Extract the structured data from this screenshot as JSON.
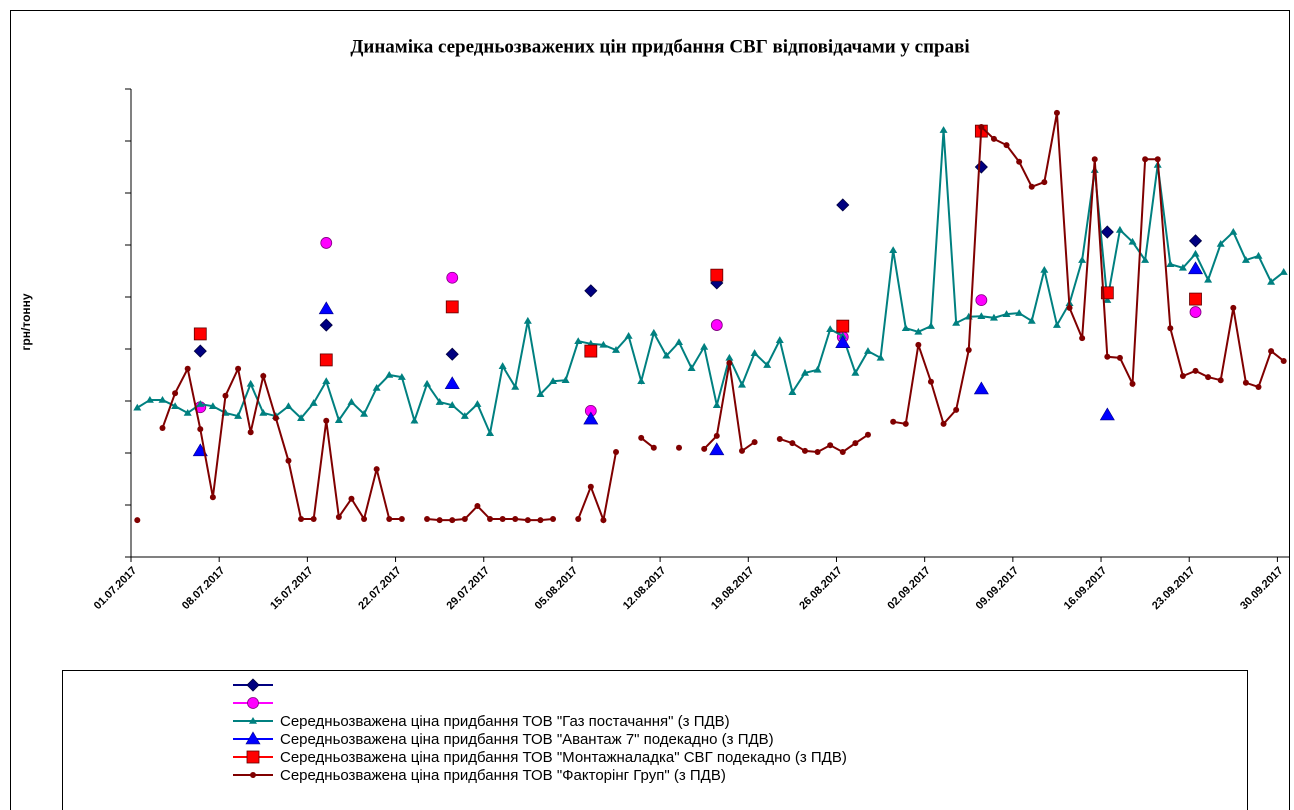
{
  "chart_data": {
    "type": "line",
    "title": "Динаміка середньозважених цін придбання СВГ відповідачами у справі",
    "y_label": "грн/тонну",
    "categories": [
      "01.07.2017",
      null,
      null,
      null,
      null,
      null,
      null,
      "08.07.2017",
      null,
      null,
      null,
      null,
      null,
      null,
      "15.07.2017",
      null,
      null,
      null,
      null,
      null,
      null,
      "22.07.2017",
      null,
      null,
      null,
      null,
      null,
      null,
      "29.07.2017",
      null,
      null,
      null,
      null,
      null,
      null,
      "05.08.2017",
      null,
      null,
      null,
      null,
      null,
      null,
      "12.08.2017",
      null,
      null,
      null,
      null,
      null,
      null,
      "19.08.2017",
      null,
      null,
      null,
      null,
      null,
      null,
      "26.08.2017",
      null,
      null,
      null,
      null,
      null,
      null,
      "02.09.2017",
      null,
      null,
      null,
      null,
      null,
      null,
      "09.09.2017",
      null,
      null,
      null,
      null,
      null,
      null,
      "16.09.2017",
      null,
      null,
      null,
      null,
      null,
      null,
      "23.09.2017",
      null,
      null,
      null,
      null,
      null,
      null,
      "30.09.2017"
    ],
    "ylim": [
      0,
      900
    ],
    "yticks": [
      0,
      100,
      200,
      300,
      400,
      500,
      600,
      700,
      800,
      900
    ],
    "grid": false,
    "series": [
      {
        "color": "#000080",
        "marker": "diamond",
        "line": false,
        "values": [
          null,
          null,
          null,
          null,
          null,
          396,
          null,
          null,
          null,
          null,
          null,
          null,
          null,
          null,
          null,
          446,
          null,
          null,
          null,
          null,
          null,
          null,
          null,
          null,
          null,
          390,
          null,
          null,
          null,
          null,
          null,
          null,
          null,
          null,
          null,
          null,
          512,
          null,
          null,
          null,
          null,
          null,
          null,
          null,
          null,
          null,
          527,
          null,
          null,
          null,
          null,
          null,
          null,
          null,
          null,
          null,
          677,
          null,
          null,
          null,
          null,
          null,
          null,
          null,
          null,
          null,
          null,
          750,
          null,
          null,
          null,
          null,
          null,
          null,
          null,
          null,
          null,
          625,
          null,
          null,
          null,
          null,
          null,
          null,
          608,
          null,
          null,
          null,
          null,
          null,
          null,
          null
        ]
      },
      {
        "color": "#ff00ff",
        "marker": "circle",
        "line": false,
        "values": [
          null,
          null,
          null,
          null,
          null,
          288,
          null,
          null,
          null,
          null,
          null,
          null,
          null,
          null,
          null,
          604,
          null,
          null,
          null,
          null,
          null,
          null,
          null,
          null,
          null,
          537,
          null,
          null,
          null,
          null,
          null,
          null,
          null,
          null,
          null,
          null,
          281,
          null,
          null,
          null,
          null,
          null,
          null,
          null,
          null,
          null,
          446,
          null,
          null,
          null,
          null,
          null,
          null,
          null,
          null,
          null,
          423,
          null,
          null,
          null,
          null,
          null,
          null,
          null,
          null,
          null,
          null,
          494,
          null,
          null,
          null,
          null,
          null,
          null,
          null,
          null,
          null,
          null,
          null,
          null,
          null,
          null,
          null,
          null,
          471,
          null,
          null,
          null,
          null,
          null,
          null,
          null
        ]
      },
      {
        "name": "Середньозважена ціна придбання ТОВ \"Газ постачання\" (з ПДВ)",
        "color": "#008080",
        "marker": "small-triangle",
        "line": true,
        "values": [
          287,
          302,
          302,
          290,
          277,
          294,
          290,
          277,
          271,
          333,
          277,
          271,
          290,
          267,
          296,
          338,
          263,
          298,
          275,
          325,
          350,
          346,
          262,
          333,
          298,
          292,
          271,
          294,
          238,
          367,
          327,
          454,
          313,
          338,
          340,
          415,
          410,
          408,
          398,
          425,
          338,
          431,
          387,
          413,
          363,
          404,
          292,
          383,
          331,
          392,
          369,
          417,
          317,
          354,
          360,
          438,
          425,
          354,
          396,
          383,
          590,
          440,
          433,
          444,
          821,
          450,
          462,
          463,
          460,
          467,
          469,
          454,
          552,
          446,
          488,
          571,
          744,
          494,
          629,
          606,
          571,
          754,
          563,
          556,
          583,
          533,
          602,
          625,
          571,
          579,
          529,
          548
        ]
      },
      {
        "name": "Середньозважена ціна придбання ТОВ \"Авантаж 7\" подекадно (з ПДВ)",
        "color": "#0000ff",
        "marker": "triangle",
        "line": false,
        "values": [
          null,
          null,
          null,
          null,
          null,
          204,
          null,
          null,
          null,
          null,
          null,
          null,
          null,
          null,
          null,
          477,
          null,
          null,
          null,
          null,
          null,
          null,
          null,
          null,
          null,
          333,
          null,
          null,
          null,
          null,
          null,
          null,
          null,
          null,
          null,
          null,
          265,
          null,
          null,
          null,
          null,
          null,
          null,
          null,
          null,
          null,
          206,
          null,
          null,
          null,
          null,
          null,
          null,
          null,
          null,
          null,
          412,
          null,
          null,
          null,
          null,
          null,
          null,
          null,
          null,
          null,
          null,
          323,
          null,
          null,
          null,
          null,
          null,
          null,
          null,
          null,
          null,
          273,
          null,
          null,
          null,
          null,
          null,
          null,
          554,
          null,
          null,
          null,
          null,
          null,
          null,
          null
        ]
      },
      {
        "name": "Середньозважена ціна придбання ТОВ \"Монтажналадка\" СВГ подекадно (з ПДВ)",
        "color": "#ff0000",
        "marker": "square",
        "line": false,
        "values": [
          null,
          null,
          null,
          null,
          null,
          429,
          null,
          null,
          null,
          null,
          null,
          null,
          null,
          null,
          null,
          379,
          null,
          null,
          null,
          null,
          null,
          null,
          null,
          null,
          null,
          481,
          null,
          null,
          null,
          null,
          null,
          null,
          null,
          null,
          null,
          null,
          396,
          null,
          null,
          null,
          null,
          null,
          null,
          null,
          null,
          null,
          542,
          null,
          null,
          null,
          null,
          null,
          null,
          null,
          null,
          null,
          444,
          null,
          null,
          null,
          null,
          null,
          null,
          null,
          null,
          null,
          null,
          819,
          null,
          null,
          null,
          null,
          null,
          null,
          null,
          null,
          null,
          508,
          null,
          null,
          null,
          null,
          null,
          null,
          496,
          null,
          null,
          null,
          null,
          null,
          null,
          null
        ]
      },
      {
        "name": "Середньозважена ціна придбання ТОВ \"Факторінг Груп\" (з ПДВ)",
        "color": "#800000",
        "marker": "dot",
        "line": true,
        "values": [
          71,
          null,
          248,
          315,
          362,
          246,
          115,
          310,
          362,
          240,
          348,
          267,
          185,
          73,
          73,
          262,
          77,
          112,
          73,
          169,
          73,
          73,
          null,
          73,
          71,
          71,
          73,
          98,
          73,
          73,
          73,
          71,
          71,
          73,
          null,
          73,
          135,
          71,
          202,
          null,
          229,
          210,
          null,
          210,
          null,
          208,
          233,
          373,
          204,
          221,
          null,
          227,
          219,
          204,
          202,
          215,
          202,
          219,
          235,
          null,
          260,
          256,
          408,
          337,
          256,
          283,
          398,
          827,
          804,
          792,
          760,
          712,
          721,
          854,
          479,
          421,
          765,
          385,
          383,
          333,
          765,
          765,
          440,
          348,
          358,
          346,
          340,
          479,
          335,
          327,
          396,
          377
        ]
      }
    ]
  }
}
